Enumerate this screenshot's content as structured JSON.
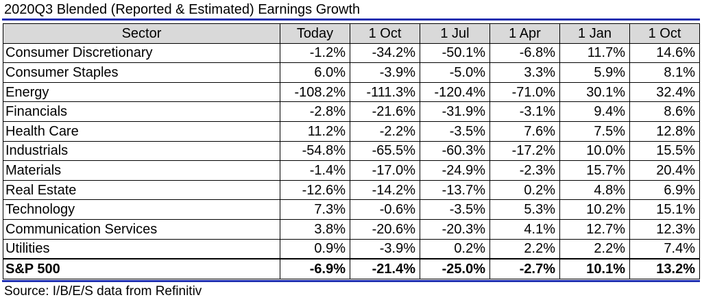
{
  "chart_data": {
    "type": "table",
    "title": "2020Q3 Blended (Reported & Estimated) Earnings Growth",
    "columns": [
      "Sector",
      "Today",
      "1 Oct",
      "1 Jul",
      "1 Apr",
      "1 Jan",
      "1 Oct"
    ],
    "rows": [
      [
        "Consumer Discretionary",
        "-1.2%",
        "-34.2%",
        "-50.1%",
        "-6.8%",
        "11.7%",
        "14.6%"
      ],
      [
        "Consumer Staples",
        "6.0%",
        "-3.9%",
        "-5.0%",
        "3.3%",
        "5.9%",
        "8.1%"
      ],
      [
        "Energy",
        "-108.2%",
        "-111.3%",
        "-120.4%",
        "-71.0%",
        "30.1%",
        "32.4%"
      ],
      [
        "Financials",
        "-2.8%",
        "-21.6%",
        "-31.9%",
        "-3.1%",
        "9.4%",
        "8.6%"
      ],
      [
        "Health Care",
        "11.2%",
        "-2.2%",
        "-3.5%",
        "7.6%",
        "7.5%",
        "12.8%"
      ],
      [
        "Industrials",
        "-54.8%",
        "-65.5%",
        "-60.3%",
        "-17.2%",
        "10.0%",
        "15.5%"
      ],
      [
        "Materials",
        "-1.4%",
        "-17.0%",
        "-24.9%",
        "-2.3%",
        "15.7%",
        "20.4%"
      ],
      [
        "Real Estate",
        "-12.6%",
        "-14.2%",
        "-13.7%",
        "0.2%",
        "4.8%",
        "6.9%"
      ],
      [
        "Technology",
        "7.3%",
        "-0.6%",
        "-3.5%",
        "5.3%",
        "10.2%",
        "15.1%"
      ],
      [
        "Communication Services",
        "3.8%",
        "-20.6%",
        "-20.3%",
        "4.1%",
        "12.7%",
        "12.3%"
      ],
      [
        "Utilities",
        "0.9%",
        "-3.9%",
        "0.2%",
        "2.2%",
        "2.2%",
        "7.4%"
      ]
    ],
    "total_row": [
      "S&P 500",
      "-6.9%",
      "-21.4%",
      "-25.0%",
      "-2.7%",
      "10.1%",
      "13.2%"
    ],
    "source": "Source: I/B/E/S data from Refinitiv",
    "colors": {
      "rule": "#1f2fb0",
      "header_bg": "#d9d9d9"
    }
  }
}
